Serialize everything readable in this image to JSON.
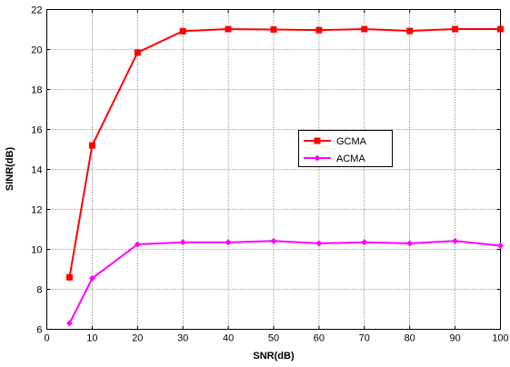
{
  "chart_data": {
    "type": "line",
    "xlabel": "SNR(dB)",
    "ylabel": "SINR(dB)",
    "xlim": [
      0,
      100
    ],
    "ylim": [
      6,
      22
    ],
    "xticks": [
      0,
      10,
      20,
      30,
      40,
      50,
      60,
      70,
      80,
      90,
      100
    ],
    "yticks": [
      6,
      8,
      10,
      12,
      14,
      16,
      18,
      20,
      22
    ],
    "grid": true,
    "legend_position": "center-right",
    "x": [
      5,
      10,
      20,
      30,
      40,
      50,
      60,
      70,
      80,
      90,
      100
    ],
    "series": [
      {
        "name": "GCMA",
        "color": "#ff0000",
        "marker": "square",
        "values": [
          8.6,
          15.2,
          19.85,
          20.92,
          21.02,
          21.0,
          20.97,
          21.02,
          20.93,
          21.02,
          21.02
        ]
      },
      {
        "name": "ACMA",
        "color": "#ff00ff",
        "marker": "diamond",
        "values": [
          6.3,
          8.55,
          10.25,
          10.35,
          10.35,
          10.42,
          10.3,
          10.35,
          10.3,
          10.42,
          10.18
        ]
      }
    ]
  }
}
